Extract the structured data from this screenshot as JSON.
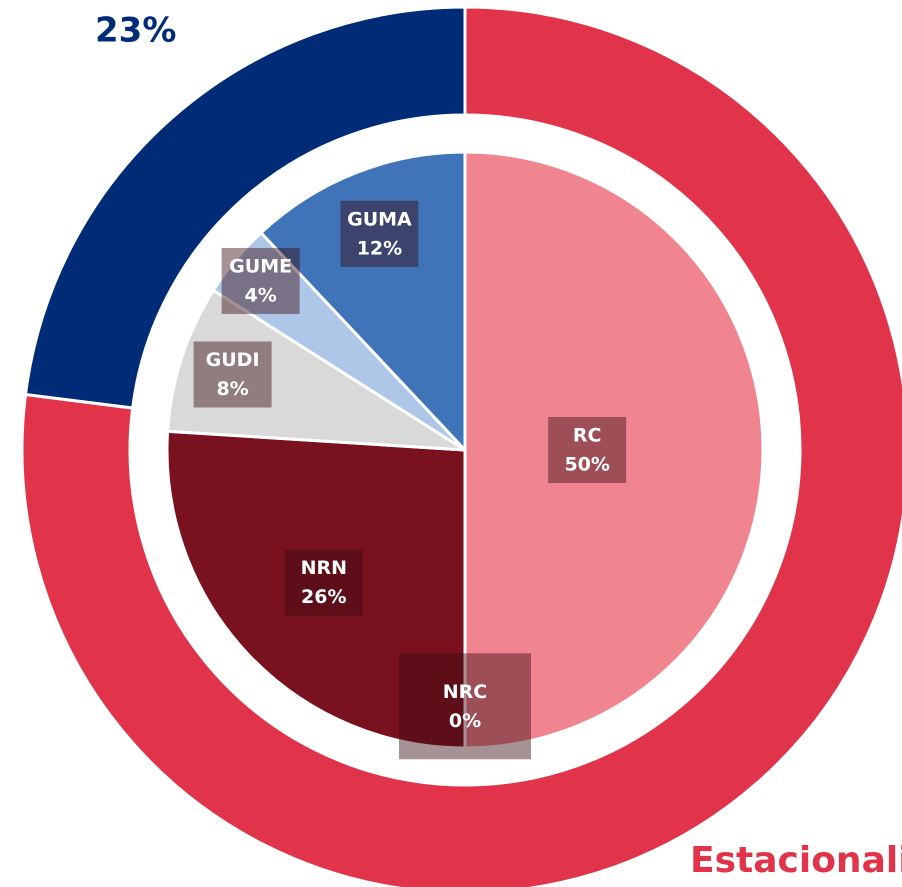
{
  "chart_data": [
    {
      "type": "donut",
      "categories": [
        "Estacionali",
        null
      ],
      "values": [
        77,
        23
      ],
      "value_labels": [
        null,
        "23%"
      ],
      "colors": [
        "#e1344a",
        "#002c77"
      ]
    },
    {
      "type": "pie",
      "categories": [
        "RC",
        "NRC",
        "NRN",
        "GUDI",
        "GUME",
        "GUMA"
      ],
      "values": [
        50,
        0,
        26,
        8,
        4,
        12
      ],
      "value_labels": [
        "50%",
        "0%",
        "26%",
        "8%",
        "4%",
        "12%"
      ],
      "colors": [
        "#f08590",
        "#8a1a2a",
        "#7a111f",
        "#d9d9d9",
        "#aec6e8",
        "#3f74b9"
      ]
    }
  ]
}
